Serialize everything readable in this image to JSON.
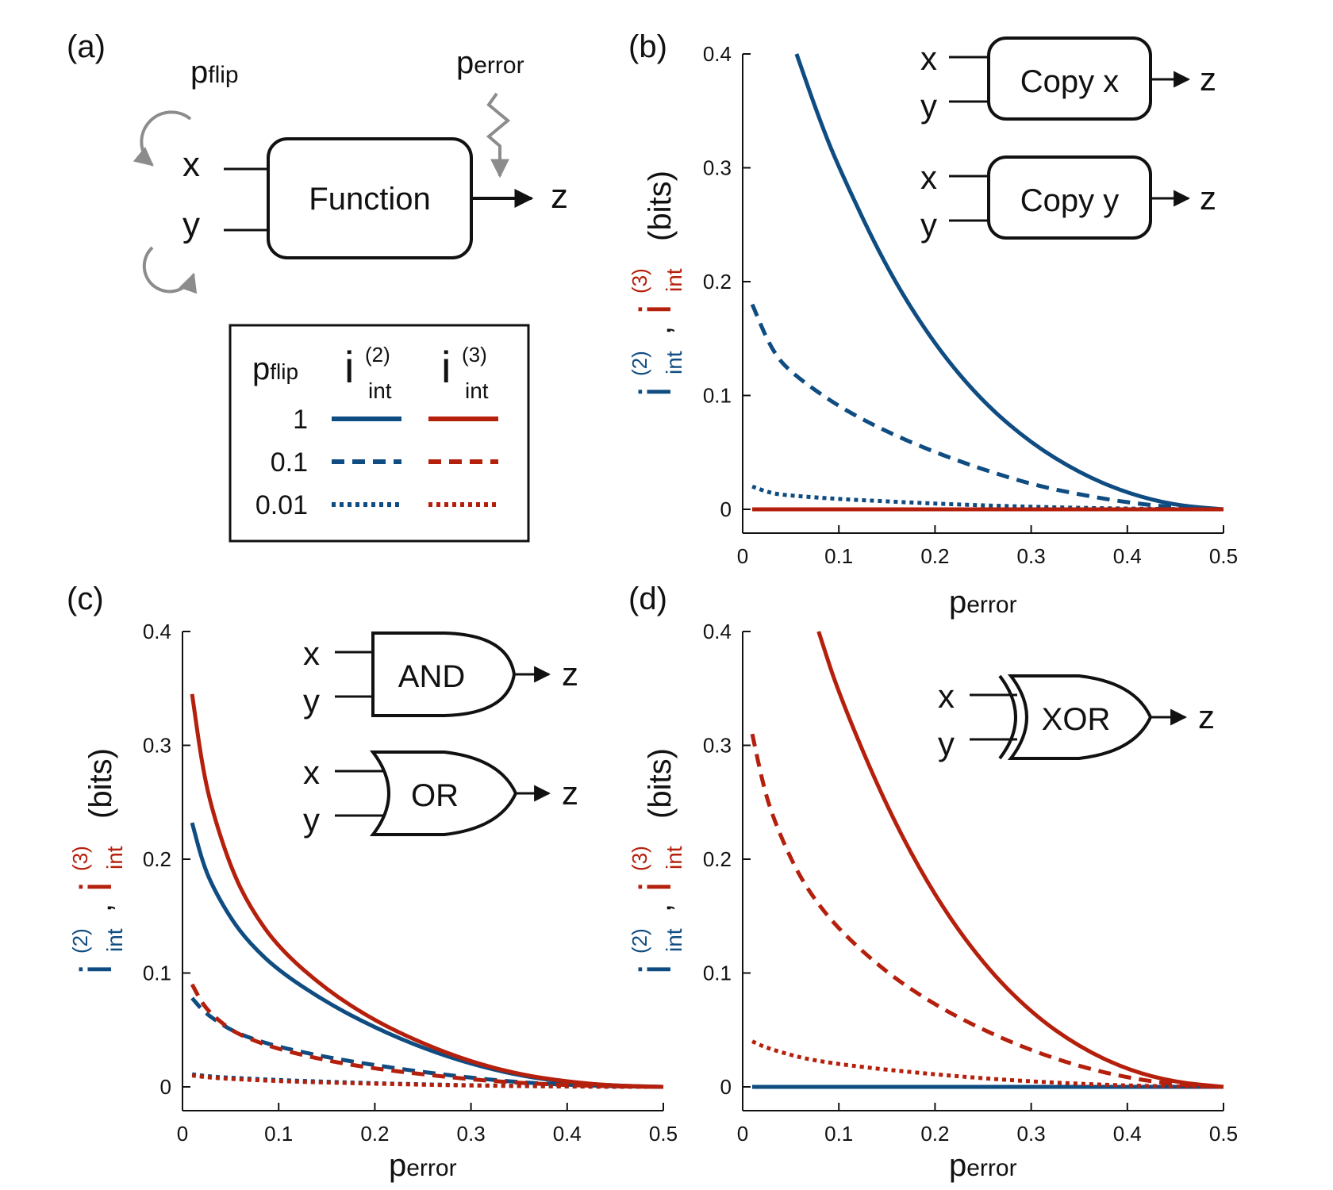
{
  "colors": {
    "blue": "#0f4c81",
    "red": "#b5200d",
    "gray": "#8c8c8c"
  },
  "panel_a": {
    "label": "(a)",
    "p_flip": "p",
    "p_flip_sub": "flip",
    "p_error": "p",
    "p_error_sub": "error",
    "input_x": "x",
    "input_y": "y",
    "box_label": "Function",
    "output": "z",
    "legend": {
      "col_pflip": "p",
      "col_pflip_sub": "flip",
      "i_symbol": "i",
      "i2_sup": "(2)",
      "i3_sup": "(3)",
      "int_sub": "int",
      "rows": [
        {
          "label": "1",
          "style": "solid"
        },
        {
          "label": "0.1",
          "style": "dashed"
        },
        {
          "label": "0.01",
          "style": "dotted"
        }
      ]
    }
  },
  "axes_text": {
    "ylabel_i": "i",
    "ylabel_sup2": "(2)",
    "ylabel_sup3": "(3)",
    "ylabel_sub": "int",
    "ylabel_comma": ",",
    "ylabel_units": "(bits)",
    "xlabel": "p",
    "xlabel_sub": "error"
  },
  "insets": {
    "b": [
      {
        "x": "x",
        "y": "y",
        "label": "Copy x",
        "z": "z"
      },
      {
        "x": "x",
        "y": "y",
        "label": "Copy y",
        "z": "z"
      }
    ],
    "c": [
      {
        "x": "x",
        "y": "y",
        "label": "AND",
        "z": "z"
      },
      {
        "x": "x",
        "y": "y",
        "label": "OR",
        "z": "z"
      }
    ],
    "d": [
      {
        "x": "x",
        "y": "y",
        "label": "XOR",
        "z": "z"
      }
    ]
  },
  "chart_data": [
    {
      "panel": "(b)",
      "type": "line",
      "xlim": [
        0,
        0.5
      ],
      "ylim": [
        0,
        0.4
      ],
      "xticks": [
        "0",
        "0.1",
        "0.2",
        "0.3",
        "0.4",
        "0.5"
      ],
      "yticks": [
        "0",
        "0.1",
        "0.2",
        "0.3",
        "0.4"
      ],
      "series": [
        {
          "measure": "i_int(2)",
          "p_flip": "1",
          "x": [
            0.056,
            0.08,
            0.1,
            0.15,
            0.2,
            0.25,
            0.3,
            0.35,
            0.4,
            0.45,
            0.5
          ],
          "y": [
            0.4,
            0.342,
            0.3,
            0.211,
            0.144,
            0.094,
            0.058,
            0.032,
            0.014,
            0.0035,
            0
          ]
        },
        {
          "measure": "i_int(2)",
          "p_flip": "0.1",
          "x": [
            0.01,
            0.03,
            0.05,
            0.1,
            0.15,
            0.2,
            0.25,
            0.3,
            0.35,
            0.4,
            0.45,
            0.5
          ],
          "y": [
            0.18,
            0.14,
            0.12,
            0.09,
            0.068,
            0.05,
            0.035,
            0.022,
            0.013,
            0.006,
            0.0015,
            0
          ]
        },
        {
          "measure": "i_int(2)",
          "p_flip": "0.01",
          "x": [
            0.01,
            0.03,
            0.05,
            0.1,
            0.15,
            0.2,
            0.25,
            0.3,
            0.35,
            0.4,
            0.45,
            0.5
          ],
          "y": [
            0.02,
            0.014,
            0.012,
            0.009,
            0.007,
            0.005,
            0.0035,
            0.0022,
            0.0013,
            0.0006,
            0.0002,
            0
          ]
        },
        {
          "measure": "i_int(3)",
          "p_flip": "1",
          "x": [
            0.01,
            0.5
          ],
          "y": [
            0,
            0
          ]
        },
        {
          "measure": "i_int(3)",
          "p_flip": "0.1",
          "x": [
            0.01,
            0.5
          ],
          "y": [
            0,
            0
          ]
        },
        {
          "measure": "i_int(3)",
          "p_flip": "0.01",
          "x": [
            0.01,
            0.5
          ],
          "y": [
            0,
            0
          ]
        }
      ]
    },
    {
      "panel": "(c)",
      "type": "line",
      "xlim": [
        0,
        0.5
      ],
      "ylim": [
        0,
        0.4
      ],
      "xticks": [
        "0",
        "0.1",
        "0.2",
        "0.3",
        "0.4",
        "0.5"
      ],
      "yticks": [
        "0",
        "0.1",
        "0.2",
        "0.3",
        "0.4"
      ],
      "series": [
        {
          "measure": "i_int(2)",
          "p_flip": "1",
          "x": [
            0.01,
            0.02,
            0.03,
            0.05,
            0.07,
            0.1,
            0.15,
            0.2,
            0.25,
            0.3,
            0.35,
            0.4,
            0.45,
            0.5
          ],
          "y": [
            0.232,
            0.2,
            0.178,
            0.148,
            0.126,
            0.102,
            0.074,
            0.052,
            0.034,
            0.02,
            0.01,
            0.004,
            0.001,
            0
          ]
        },
        {
          "measure": "i_int(2)",
          "p_flip": "0.1",
          "x": [
            0.01,
            0.02,
            0.03,
            0.05,
            0.07,
            0.1,
            0.15,
            0.2,
            0.25,
            0.3,
            0.35,
            0.4,
            0.45,
            0.5
          ],
          "y": [
            0.078,
            0.068,
            0.061,
            0.05,
            0.043,
            0.035,
            0.026,
            0.019,
            0.013,
            0.008,
            0.004,
            0.0018,
            0.0005,
            0
          ]
        },
        {
          "measure": "i_int(2)",
          "p_flip": "0.01",
          "x": [
            0.01,
            0.03,
            0.05,
            0.1,
            0.15,
            0.2,
            0.25,
            0.3,
            0.35,
            0.4,
            0.45,
            0.5
          ],
          "y": [
            0.011,
            0.009,
            0.008,
            0.006,
            0.0045,
            0.0032,
            0.0022,
            0.0014,
            0.0008,
            0.0004,
            0.0001,
            0
          ]
        },
        {
          "measure": "i_int(3)",
          "p_flip": "1",
          "x": [
            0.01,
            0.02,
            0.03,
            0.05,
            0.07,
            0.1,
            0.15,
            0.2,
            0.25,
            0.3,
            0.35,
            0.4,
            0.45,
            0.5
          ],
          "y": [
            0.345,
            0.285,
            0.245,
            0.193,
            0.158,
            0.122,
            0.085,
            0.058,
            0.038,
            0.022,
            0.011,
            0.0045,
            0.001,
            0
          ]
        },
        {
          "measure": "i_int(3)",
          "p_flip": "0.1",
          "x": [
            0.01,
            0.02,
            0.03,
            0.05,
            0.07,
            0.1,
            0.15,
            0.2,
            0.25,
            0.3,
            0.35,
            0.4,
            0.45,
            0.5
          ],
          "y": [
            0.09,
            0.074,
            0.064,
            0.05,
            0.042,
            0.033,
            0.023,
            0.016,
            0.011,
            0.0065,
            0.0035,
            0.0015,
            0.0004,
            0
          ]
        },
        {
          "measure": "i_int(3)",
          "p_flip": "0.01",
          "x": [
            0.01,
            0.03,
            0.05,
            0.1,
            0.15,
            0.2,
            0.25,
            0.3,
            0.35,
            0.4,
            0.45,
            0.5
          ],
          "y": [
            0.01,
            0.008,
            0.007,
            0.005,
            0.0038,
            0.0028,
            0.0019,
            0.0012,
            0.0007,
            0.0003,
            0.0001,
            0
          ]
        }
      ]
    },
    {
      "panel": "(d)",
      "type": "line",
      "xlim": [
        0,
        0.5
      ],
      "ylim": [
        0,
        0.4
      ],
      "xticks": [
        "0",
        "0.1",
        "0.2",
        "0.3",
        "0.4",
        "0.5"
      ],
      "yticks": [
        "0",
        "0.1",
        "0.2",
        "0.3",
        "0.4"
      ],
      "series": [
        {
          "measure": "i_int(2)",
          "p_flip": "1",
          "x": [
            0.01,
            0.5
          ],
          "y": [
            0,
            0
          ]
        },
        {
          "measure": "i_int(2)",
          "p_flip": "0.1",
          "x": [
            0.01,
            0.5
          ],
          "y": [
            0,
            0
          ]
        },
        {
          "measure": "i_int(2)",
          "p_flip": "0.01",
          "x": [
            0.01,
            0.5
          ],
          "y": [
            0,
            0
          ]
        },
        {
          "measure": "i_int(3)",
          "p_flip": "1",
          "x": [
            0.079,
            0.1,
            0.15,
            0.2,
            0.25,
            0.3,
            0.35,
            0.4,
            0.45,
            0.5
          ],
          "y": [
            0.4,
            0.345,
            0.245,
            0.167,
            0.108,
            0.065,
            0.035,
            0.015,
            0.004,
            0
          ]
        },
        {
          "measure": "i_int(3)",
          "p_flip": "0.1",
          "x": [
            0.01,
            0.02,
            0.03,
            0.05,
            0.07,
            0.1,
            0.15,
            0.2,
            0.25,
            0.3,
            0.35,
            0.4,
            0.45,
            0.5
          ],
          "y": [
            0.31,
            0.27,
            0.24,
            0.2,
            0.17,
            0.138,
            0.1,
            0.072,
            0.05,
            0.032,
            0.018,
            0.008,
            0.002,
            0
          ]
        },
        {
          "measure": "i_int(3)",
          "p_flip": "0.01",
          "x": [
            0.01,
            0.02,
            0.03,
            0.05,
            0.07,
            0.1,
            0.15,
            0.2,
            0.25,
            0.3,
            0.35,
            0.4,
            0.45,
            0.5
          ],
          "y": [
            0.04,
            0.036,
            0.033,
            0.028,
            0.024,
            0.02,
            0.015,
            0.011,
            0.0075,
            0.0048,
            0.0027,
            0.0012,
            0.0003,
            0
          ]
        }
      ]
    }
  ]
}
